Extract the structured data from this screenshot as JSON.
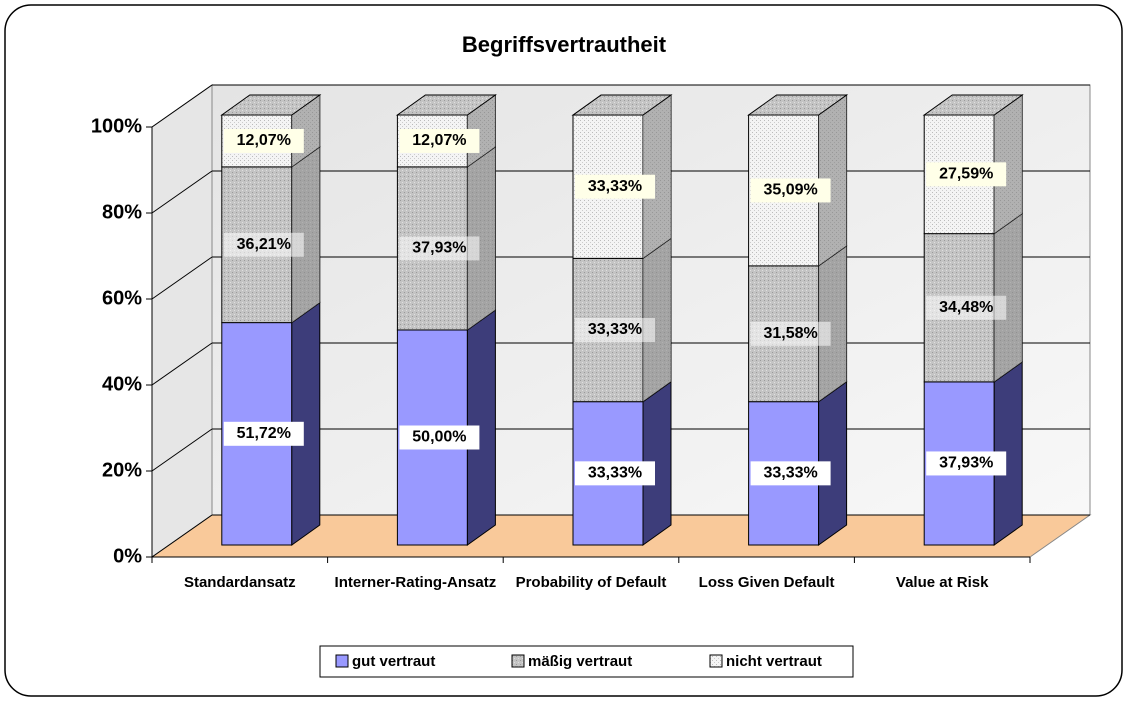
{
  "chart_data": {
    "type": "bar3d_stacked",
    "title": "Begriffsvertrautheit",
    "categories": [
      "Standardansatz",
      "Interner-Rating-Ansatz",
      "Probability of Default",
      "Loss Given Default",
      "Value at Risk"
    ],
    "series": [
      {
        "name": "gut vertraut",
        "color": "#9999ff",
        "side_color": "#3d3d7a",
        "values": [
          51.72,
          50.0,
          33.33,
          33.33,
          37.93
        ],
        "value_labels": [
          "51,72%",
          "50,00%",
          "33,33%",
          "33,33%",
          "37,93%"
        ]
      },
      {
        "name": "mäßig vertraut",
        "color": "#c0c0c0",
        "side_color": "#8a8a8a",
        "values": [
          36.21,
          37.93,
          33.33,
          31.58,
          34.48
        ],
        "value_labels": [
          "36,21%",
          "37,93%",
          "33,33%",
          "31,58%",
          "34,48%"
        ]
      },
      {
        "name": "nicht vertraut",
        "color": "#ececec",
        "side_color": "#7a7a7a",
        "values": [
          12.07,
          12.07,
          33.33,
          35.09,
          27.59
        ],
        "value_labels": [
          "12,07%",
          "12,07%",
          "33,33%",
          "35,09%",
          "27,59%"
        ]
      }
    ],
    "ylim": [
      0,
      100
    ],
    "yticks": [
      {
        "value": 0,
        "label": "0%"
      },
      {
        "value": 20,
        "label": "20%"
      },
      {
        "value": 40,
        "label": "40%"
      },
      {
        "value": 60,
        "label": "60%"
      },
      {
        "value": 80,
        "label": "80%"
      },
      {
        "value": 100,
        "label": "100%"
      }
    ],
    "grid": true,
    "legend": "bottom"
  }
}
